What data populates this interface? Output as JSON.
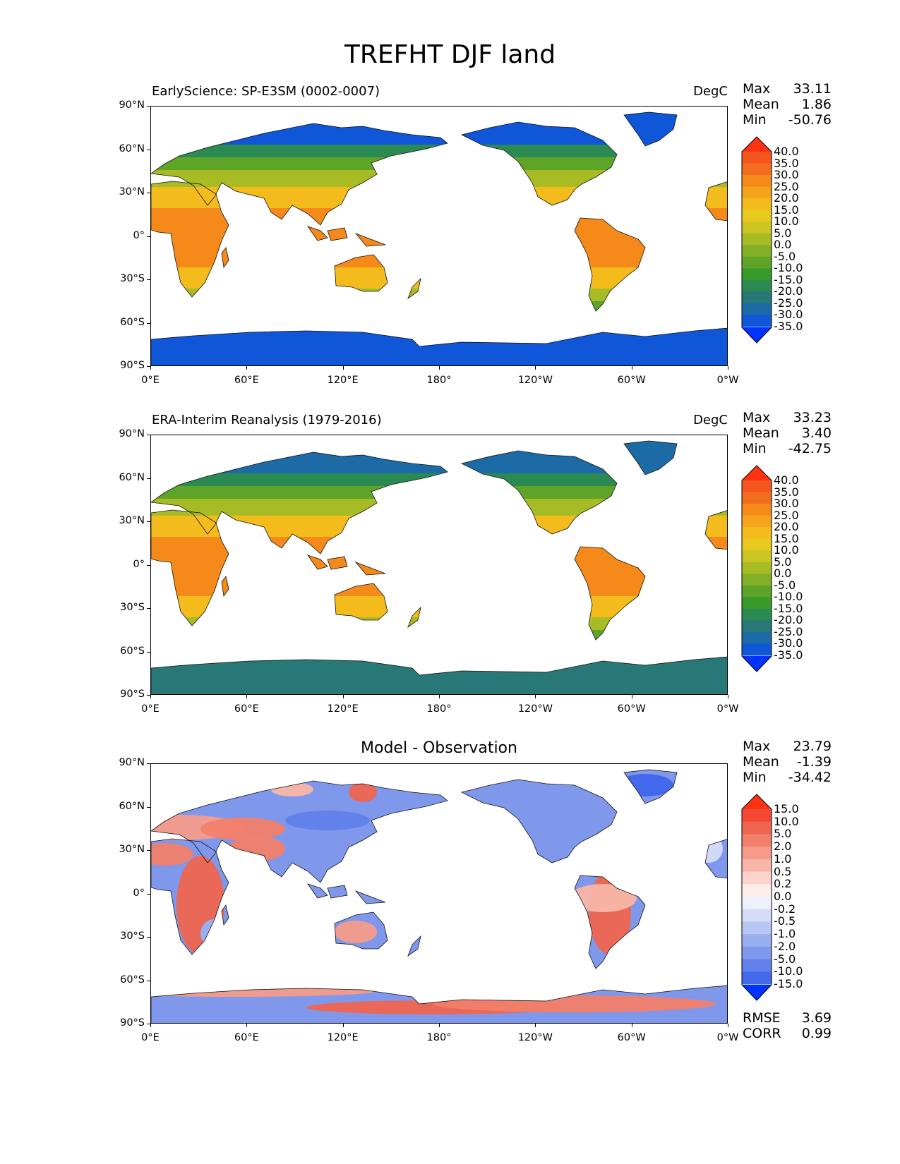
{
  "figure": {
    "title": "TREFHT DJF land"
  },
  "axes": {
    "lat_ticks": [
      "90°N",
      "60°N",
      "30°N",
      "0°",
      "30°S",
      "60°S",
      "90°S"
    ],
    "lon_ticks": [
      "0°E",
      "60°E",
      "120°E",
      "180°",
      "120°W",
      "60°W",
      "0°W"
    ]
  },
  "panels": [
    {
      "title": "EarlyScience: SP-E3SM (0002-0007)",
      "units": "DegC",
      "stats": {
        "max_label": "Max",
        "max": "33.11",
        "mean_label": "Mean",
        "mean": "1.86",
        "min_label": "Min",
        "min": "-50.76"
      },
      "colorbar_levels": [
        "40.0",
        "35.0",
        "30.0",
        "25.0",
        "20.0",
        "15.0",
        "10.0",
        "5.0",
        "0.0",
        "-5.0",
        "-10.0",
        "-15.0",
        "-20.0",
        "-25.0",
        "-30.0",
        "-35.0"
      ],
      "colorbar_colors": [
        "#ff3311",
        "#f6551d",
        "#f26d1d",
        "#f5891a",
        "#f5a31b",
        "#f3bb1c",
        "#e8c91e",
        "#ccc522",
        "#a7bc24",
        "#84b027",
        "#5da428",
        "#399b2a",
        "#2a8a52",
        "#287877",
        "#1c6aa6",
        "#0f57d8",
        "#0033ff"
      ]
    },
    {
      "title": "ERA-Interim Reanalysis (1979-2016)",
      "units": "DegC",
      "stats": {
        "max_label": "Max",
        "max": "33.23",
        "mean_label": "Mean",
        "mean": "3.40",
        "min_label": "Min",
        "min": "-42.75"
      },
      "colorbar_levels": [
        "40.0",
        "35.0",
        "30.0",
        "25.0",
        "20.0",
        "15.0",
        "10.0",
        "5.0",
        "0.0",
        "-5.0",
        "-10.0",
        "-15.0",
        "-20.0",
        "-25.0",
        "-30.0",
        "-35.0"
      ],
      "colorbar_colors": [
        "#ff3311",
        "#f6551d",
        "#f26d1d",
        "#f5891a",
        "#f5a31b",
        "#f3bb1c",
        "#e8c91e",
        "#ccc522",
        "#a7bc24",
        "#84b027",
        "#5da428",
        "#399b2a",
        "#2a8a52",
        "#287877",
        "#1c6aa6",
        "#0f57d8",
        "#0033ff"
      ]
    },
    {
      "title": "Model - Observation",
      "units": "",
      "stats": {
        "max_label": "Max",
        "max": "23.79",
        "mean_label": "Mean",
        "mean": "-1.39",
        "min_label": "Min",
        "min": "-34.42"
      },
      "extra_stats": {
        "rmse_label": "RMSE",
        "rmse": "3.69",
        "corr_label": "CORR",
        "corr": "0.99"
      },
      "colorbar_levels": [
        "15.0",
        "10.0",
        "5.0",
        "2.0",
        "1.0",
        "0.5",
        "0.2",
        "0.0",
        "-0.2",
        "-0.5",
        "-1.0",
        "-2.0",
        "-5.0",
        "-10.0",
        "-15.0"
      ],
      "colorbar_colors": [
        "#ff3311",
        "#f44a35",
        "#f0654f",
        "#f27f6b",
        "#f59b8a",
        "#f8b6a8",
        "#fbd3ca",
        "#fbeeea",
        "#eef1fb",
        "#d5dcf7",
        "#b8c6f3",
        "#9aaff0",
        "#7f98ec",
        "#6381ea",
        "#4468ec",
        "#0033ff"
      ]
    }
  ]
}
